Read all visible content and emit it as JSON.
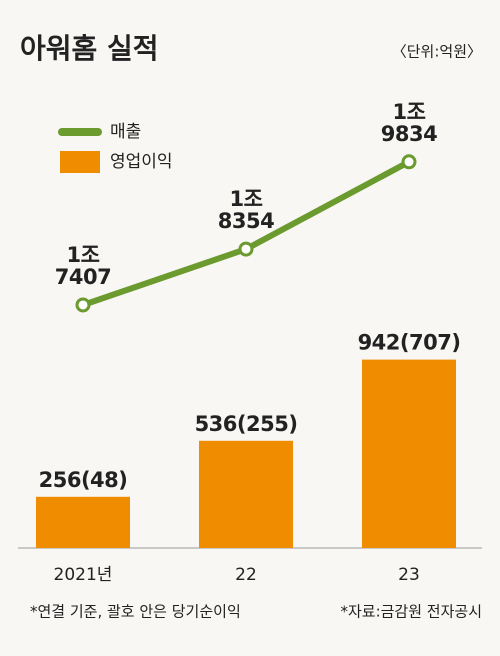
{
  "chart_data": {
    "type": "bar-line",
    "title": "아워홈 실적",
    "subtitle": "〈단위:억원〉",
    "categories": [
      "2021년",
      "22",
      "23"
    ],
    "series": [
      {
        "name": "매출",
        "type": "line",
        "axis": "y2",
        "color": "#6b9a2f",
        "values": [
          17407,
          18354,
          19834
        ],
        "value_labels": [
          "1조\n7407",
          "1조\n8354",
          "1조\n9834"
        ]
      },
      {
        "name": "영업이익",
        "type": "bar",
        "color": "#f08c00",
        "values": [
          256,
          536,
          942
        ],
        "value_labels": [
          "256(48)",
          "536(255)",
          "942(707)"
        ]
      }
    ],
    "ylim": [
      0,
      1000
    ],
    "y2lim": [
      15000,
      21000
    ],
    "notes": [
      "*연결 기준, 괄호 안은 당기순이익",
      "*자료:금감원 전자공시"
    ]
  }
}
